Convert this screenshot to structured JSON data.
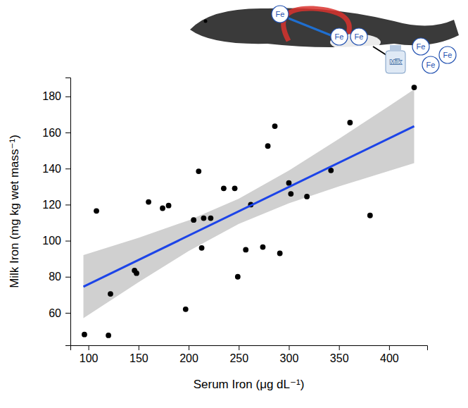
{
  "chart_data": {
    "type": "scatter",
    "x_label": "Serum Iron (μg dL⁻¹)",
    "y_label": "Milk Iron (mg kg wet mass⁻¹)",
    "x": [
      96,
      108,
      120,
      122,
      146,
      148,
      160,
      174,
      180,
      197,
      205,
      210,
      213,
      215,
      222,
      235,
      246,
      249,
      257,
      262,
      274,
      279,
      286,
      291,
      300,
      302,
      318,
      342,
      361,
      381,
      425
    ],
    "y": [
      48,
      116.5,
      47.5,
      70.5,
      83.5,
      82,
      121.5,
      118,
      119.5,
      62,
      111.5,
      138.5,
      96,
      112.5,
      112.5,
      129,
      129,
      80,
      95,
      120,
      96.5,
      152.5,
      163.5,
      93,
      132,
      126,
      124.5,
      139,
      165.5,
      114,
      185
    ],
    "color": "#000000",
    "marker": "circle",
    "fit": {
      "x": [
        95,
        425
      ],
      "y": [
        74.5,
        163.5
      ],
      "color": "#1c44e8"
    },
    "band": {
      "x": [
        95,
        150,
        200,
        250,
        300,
        350,
        400,
        425
      ],
      "lower": [
        57.0,
        77.0,
        94.3,
        109.3,
        120.7,
        130.1,
        138.7,
        143.0
      ],
      "upper": [
        92.0,
        101.6,
        111.3,
        123.3,
        138.9,
        156.5,
        174.7,
        184.0
      ],
      "color": "#d0d0d0"
    },
    "xlim": [
      82,
      438
    ],
    "ylim": [
      42,
      190.5
    ],
    "xticks": [
      100,
      150,
      200,
      250,
      300,
      350,
      400
    ],
    "yticks": [
      60,
      80,
      100,
      120,
      140,
      160,
      180
    ],
    "grid": false,
    "annotations": [
      "Fe",
      "Fe",
      "Fe",
      "Milk",
      "Fe",
      "Fe",
      "Fe"
    ]
  }
}
